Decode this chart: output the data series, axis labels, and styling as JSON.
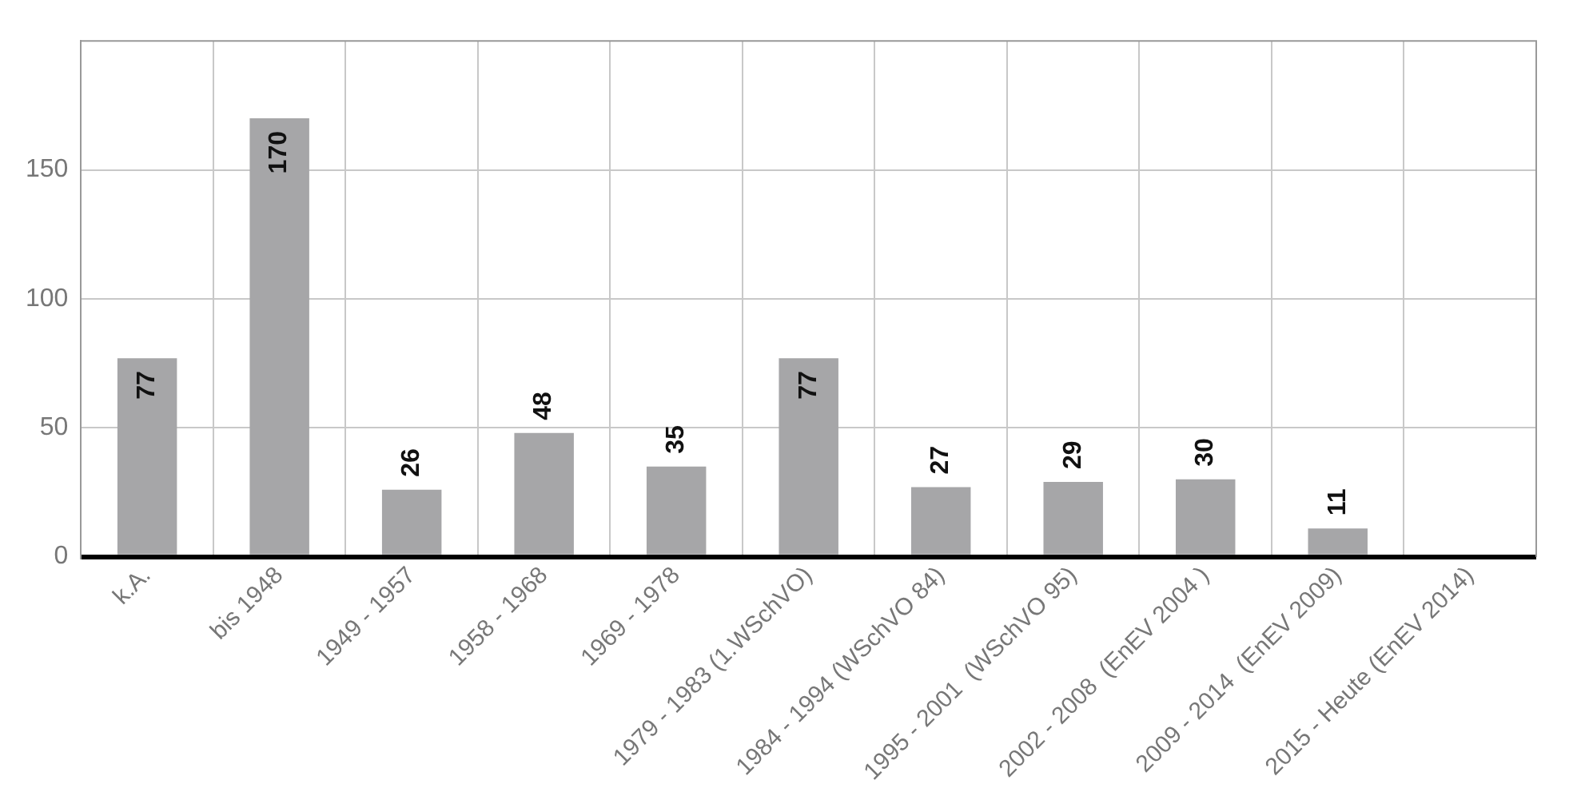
{
  "chart_data": {
    "type": "bar",
    "categories": [
      "k.A.",
      "bis 1948",
      "1949 - 1957",
      "1958 - 1968",
      "1969 - 1978",
      "1979 - 1983 (1.WSchVO)",
      "1984 - 1994 (WSchVO 84)",
      "1995 - 2001  (WSchVO 95)",
      "2002 - 2008  (EnEV 2004 )",
      "2009 - 2014  (EnEV 2009)",
      "2015 - Heute (EnEV 2014)"
    ],
    "values": [
      77,
      170,
      26,
      48,
      35,
      77,
      27,
      29,
      30,
      11,
      null
    ],
    "color": "#a6a6a8",
    "ylim": [
      0,
      200
    ],
    "yticks": [
      0,
      50,
      100,
      150
    ],
    "grid": true,
    "legend": false,
    "data_labels": true
  }
}
